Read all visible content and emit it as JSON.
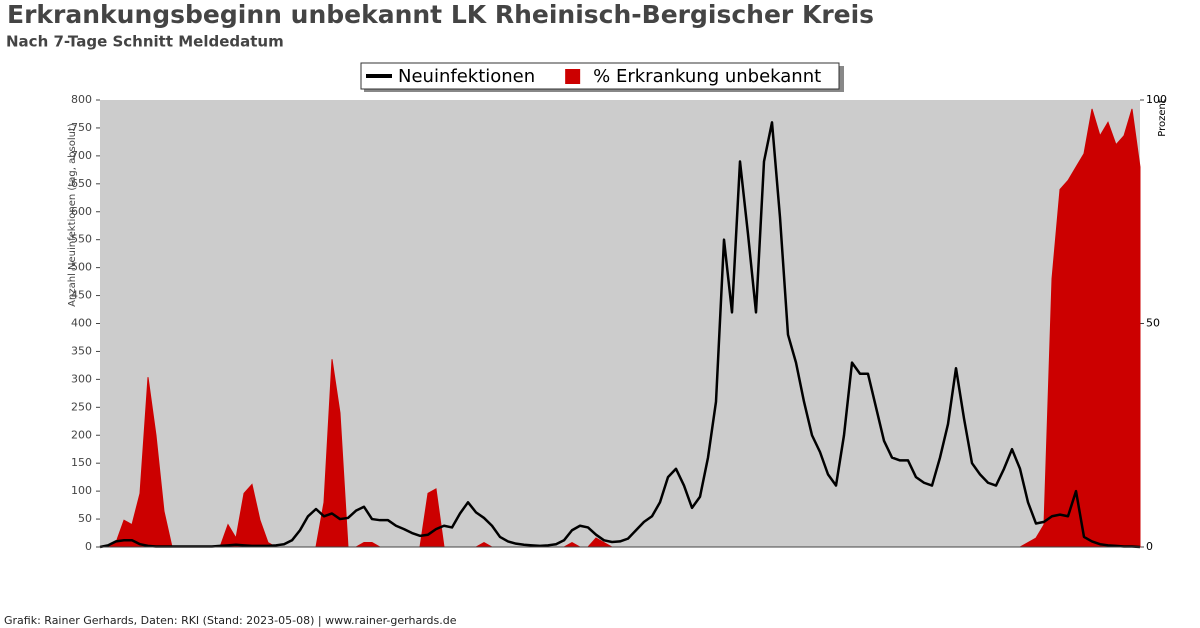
{
  "chart_data": {
    "type": "line",
    "title": "Erkrankungsbeginn unbekannt LK Rheinisch-Bergischer Kreis",
    "subtitle": "Nach 7-Tage Schnitt Meldedatum",
    "ylabel": "Anzahl Neuinfektionen (tag, absolut)",
    "y2label": "Prozent",
    "footer": "Grafik: Rainer Gerhards, Daten: RKI (Stand: 2023-05-08) | www.rainer-gerhards.de",
    "legend": "top",
    "grid": false,
    "ylim": [
      0,
      800
    ],
    "yticks": [
      0,
      50,
      100,
      150,
      200,
      250,
      300,
      350,
      400,
      450,
      500,
      550,
      600,
      650,
      700,
      750,
      800
    ],
    "y2lim": [
      0,
      100
    ],
    "y2ticks": [
      0,
      50,
      100
    ],
    "series": [
      {
        "name": "Neuinfektionen",
        "color": "#000000",
        "type": "line",
        "values": [
          0,
          3,
          10,
          12,
          12,
          5,
          2,
          1,
          1,
          1,
          1,
          1,
          1,
          1,
          1,
          2,
          3,
          4,
          3,
          2,
          2,
          2,
          3,
          5,
          12,
          30,
          55,
          68,
          55,
          60,
          50,
          52,
          65,
          72,
          50,
          48,
          48,
          38,
          32,
          25,
          20,
          22,
          32,
          38,
          35,
          60,
          80,
          62,
          52,
          38,
          18,
          10,
          6,
          4,
          3,
          2,
          3,
          5,
          12,
          30,
          38,
          35,
          22,
          12,
          9,
          10,
          15,
          30,
          45,
          55,
          80,
          125,
          140,
          110,
          70,
          90,
          160,
          260,
          550,
          420,
          690,
          560,
          420,
          690,
          760,
          590,
          380,
          330,
          260,
          200,
          170,
          130,
          110,
          200,
          330,
          310,
          310,
          250,
          190,
          160,
          155,
          155,
          125,
          115,
          110,
          160,
          220,
          320,
          230,
          150,
          130,
          115,
          110,
          140,
          175,
          140,
          80,
          42,
          45,
          55,
          58,
          55,
          100,
          18,
          10,
          5,
          3,
          2,
          1,
          1,
          0
        ]
      },
      {
        "name": "% Erkrankung unbekannt",
        "color": "#cc0000",
        "type": "area",
        "axis": "y2",
        "values": [
          0,
          0,
          1,
          6,
          5,
          12,
          38,
          25,
          8,
          0,
          0,
          0,
          0,
          0,
          0,
          0,
          5,
          2,
          12,
          14,
          6,
          1,
          0,
          0,
          0,
          0,
          0,
          0,
          10,
          42,
          30,
          0,
          0,
          1,
          1,
          0,
          0,
          0,
          0,
          0,
          0,
          12,
          13,
          0,
          0,
          0,
          0,
          0,
          1,
          0,
          0,
          0,
          0,
          0,
          0,
          0,
          0,
          0,
          0,
          1,
          0,
          0,
          2,
          1,
          0,
          0,
          0,
          0,
          0,
          0,
          0,
          0,
          0,
          0,
          0,
          0,
          0,
          0,
          0,
          0,
          0,
          0,
          0,
          0,
          0,
          0,
          0,
          0,
          0,
          0,
          0,
          0,
          0,
          0,
          0,
          0,
          0,
          0,
          0,
          0,
          0,
          0,
          0,
          0,
          0,
          0,
          0,
          0,
          0,
          0,
          0,
          0,
          0,
          0,
          0,
          0,
          1,
          2,
          5,
          60,
          80,
          82,
          85,
          88,
          98,
          92,
          95,
          90,
          92,
          98,
          85
        ]
      }
    ]
  }
}
